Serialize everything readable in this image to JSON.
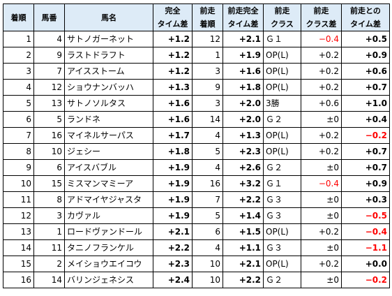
{
  "header": {
    "chakujun": "着順",
    "umaban": "馬番",
    "bamei": "馬名",
    "kanzen_1": "完全",
    "kanzen_2": "タイム差",
    "zenso_1": "前走",
    "zenso_2": "着順",
    "zenso_kanzen_1": "前走完全",
    "zenso_kanzen_2": "タイム差",
    "zenso_class_1": "前走",
    "zenso_class_2": "クラス",
    "class_sa_1": "前走",
    "class_sa_2": "クラス差",
    "zenso_tonosa_1": "前走との",
    "zenso_tonosa_2": "タイム差"
  },
  "rows": [
    {
      "rank": "1",
      "umaban": "4",
      "name": "サトノガーネット",
      "kanzen": "+1.2",
      "prev_rank": "12",
      "prev_kanzen": "+2.1",
      "prev_class": "Ｇ１",
      "class_diff": "−0.4",
      "class_diff_color": "#ff0000",
      "diff": "+0.5",
      "diff_color": "#000000"
    },
    {
      "rank": "2",
      "umaban": "9",
      "name": "ラストドラフト",
      "kanzen": "+1.2",
      "prev_rank": "1",
      "prev_kanzen": "+1.9",
      "prev_class": "OP(L)",
      "class_diff": "+0.2",
      "class_diff_color": "#000000",
      "diff": "+0.9",
      "diff_color": "#000000"
    },
    {
      "rank": "3",
      "umaban": "7",
      "name": "アイスストーム",
      "kanzen": "+1.2",
      "prev_rank": "3",
      "prev_kanzen": "+1.6",
      "prev_class": "OP(L)",
      "class_diff": "+0.2",
      "class_diff_color": "#000000",
      "diff": "+0.6",
      "diff_color": "#000000"
    },
    {
      "rank": "4",
      "umaban": "12",
      "name": "ショウナンバッハ",
      "kanzen": "+1.3",
      "prev_rank": "9",
      "prev_kanzen": "+1.8",
      "prev_class": "OP(L)",
      "class_diff": "+0.2",
      "class_diff_color": "#000000",
      "diff": "+0.7",
      "diff_color": "#000000"
    },
    {
      "rank": "5",
      "umaban": "13",
      "name": "サトノソルタス",
      "kanzen": "+1.6",
      "prev_rank": "3",
      "prev_kanzen": "+2.0",
      "prev_class": "3勝",
      "class_diff": "+0.6",
      "class_diff_color": "#000000",
      "diff": "+1.0",
      "diff_color": "#000000"
    },
    {
      "rank": "6",
      "umaban": "5",
      "name": "ランドネ",
      "kanzen": "+1.6",
      "prev_rank": "14",
      "prev_kanzen": "+2.0",
      "prev_class": "Ｇ２",
      "class_diff": "±0",
      "class_diff_color": "#000000",
      "diff": "+0.4",
      "diff_color": "#000000"
    },
    {
      "rank": "7",
      "umaban": "16",
      "name": "マイネルサーパス",
      "kanzen": "+1.7",
      "prev_rank": "4",
      "prev_kanzen": "+1.3",
      "prev_class": "OP(L)",
      "class_diff": "+0.2",
      "class_diff_color": "#000000",
      "diff": "−0.2",
      "diff_color": "#ff0000"
    },
    {
      "rank": "8",
      "umaban": "10",
      "name": "ジェシー",
      "kanzen": "+1.8",
      "prev_rank": "5",
      "prev_kanzen": "+2.3",
      "prev_class": "OP(L)",
      "class_diff": "+0.2",
      "class_diff_color": "#000000",
      "diff": "+0.7",
      "diff_color": "#000000"
    },
    {
      "rank": "9",
      "umaban": "6",
      "name": "アイスバブル",
      "kanzen": "+1.9",
      "prev_rank": "4",
      "prev_kanzen": "+2.6",
      "prev_class": "Ｇ２",
      "class_diff": "±0",
      "class_diff_color": "#000000",
      "diff": "+0.7",
      "diff_color": "#000000"
    },
    {
      "rank": "10",
      "umaban": "15",
      "name": "ミスマンマミーア",
      "kanzen": "+1.9",
      "prev_rank": "16",
      "prev_kanzen": "+3.2",
      "prev_class": "Ｇ１",
      "class_diff": "−0.4",
      "class_diff_color": "#ff0000",
      "diff": "+0.9",
      "diff_color": "#000000"
    },
    {
      "rank": "11",
      "umaban": "8",
      "name": "アドマイヤジャスタ",
      "kanzen": "+1.9",
      "prev_rank": "7",
      "prev_kanzen": "+2.2",
      "prev_class": "Ｇ３",
      "class_diff": "±0",
      "class_diff_color": "#000000",
      "diff": "+0.3",
      "diff_color": "#000000"
    },
    {
      "rank": "12",
      "umaban": "3",
      "name": "カヴァル",
      "kanzen": "+1.9",
      "prev_rank": "5",
      "prev_kanzen": "+1.4",
      "prev_class": "Ｇ３",
      "class_diff": "±0",
      "class_diff_color": "#000000",
      "diff": "−0.5",
      "diff_color": "#ff0000"
    },
    {
      "rank": "13",
      "umaban": "1",
      "name": "ロードヴァンドール",
      "kanzen": "+2.1",
      "prev_rank": "6",
      "prev_kanzen": "+1.5",
      "prev_class": "OP(L)",
      "class_diff": "+0.2",
      "class_diff_color": "#000000",
      "diff": "−0.4",
      "diff_color": "#ff0000"
    },
    {
      "rank": "14",
      "umaban": "11",
      "name": "タニノフランケル",
      "kanzen": "+2.2",
      "prev_rank": "4",
      "prev_kanzen": "+1.1",
      "prev_class": "Ｇ３",
      "class_diff": "±0",
      "class_diff_color": "#000000",
      "diff": "−1.1",
      "diff_color": "#ff0000"
    },
    {
      "rank": "15",
      "umaban": "2",
      "name": "メイショウエイコウ",
      "kanzen": "+2.3",
      "prev_rank": "10",
      "prev_kanzen": "+2.1",
      "prev_class": "OP(L)",
      "class_diff": "+0.2",
      "class_diff_color": "#000000",
      "diff": "+0.0",
      "diff_color": "#000000"
    },
    {
      "rank": "16",
      "umaban": "14",
      "name": "バリンジェネシス",
      "kanzen": "+2.4",
      "prev_rank": "10",
      "prev_kanzen": "+2.2",
      "prev_class": "Ｇ２",
      "class_diff": "±0",
      "class_diff_color": "#000000",
      "diff": "−0.2",
      "diff_color": "#ff0000"
    }
  ]
}
